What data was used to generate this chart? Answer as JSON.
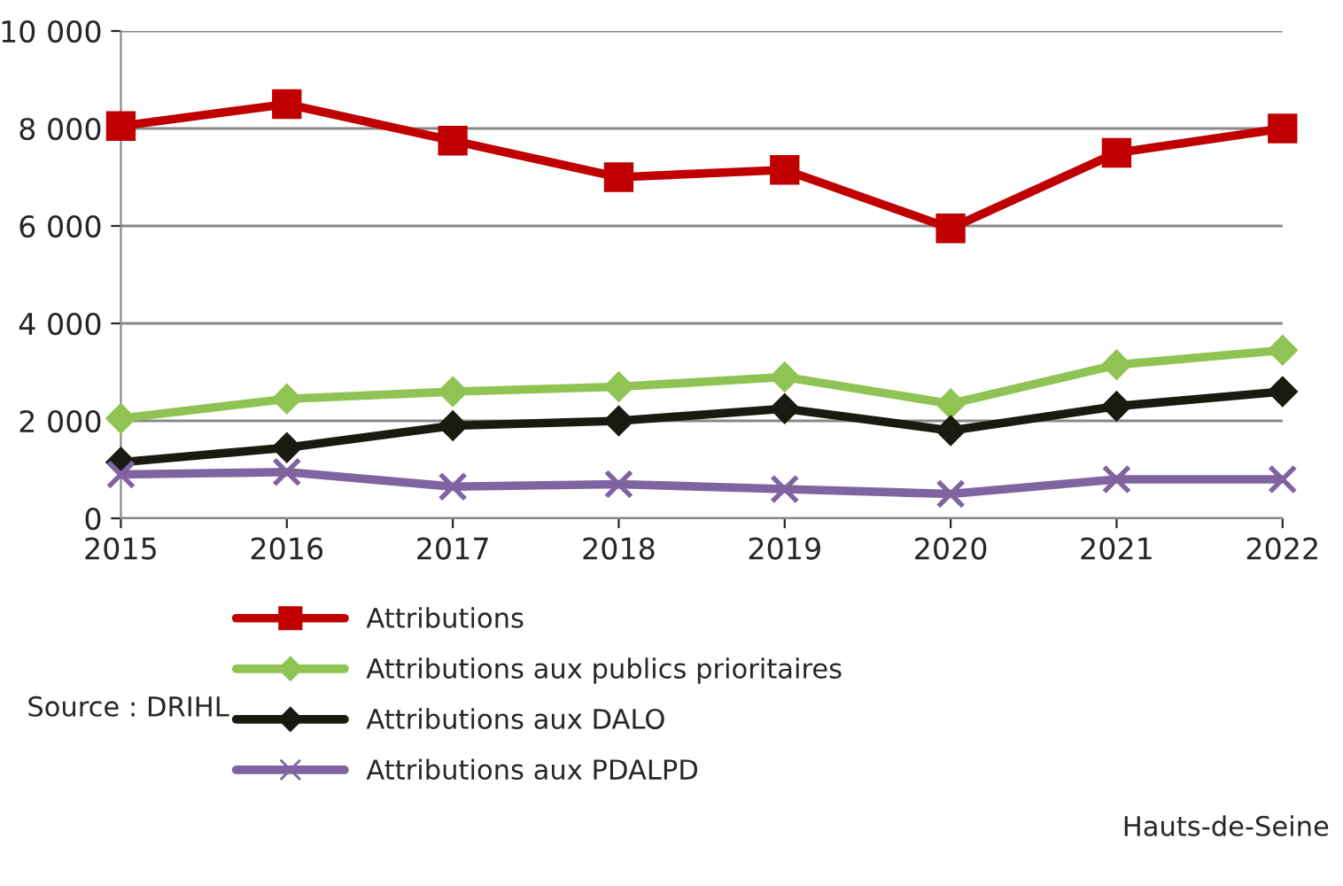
{
  "chart_data": {
    "type": "line",
    "categories": [
      "2015",
      "2016",
      "2017",
      "2018",
      "2019",
      "2020",
      "2021",
      "2022"
    ],
    "series": [
      {
        "name": "Attributions",
        "color": "#c00000",
        "marker": "square",
        "values": [
          8050,
          8500,
          7750,
          7000,
          7150,
          5950,
          7500,
          8000
        ]
      },
      {
        "name": "Attributions aux publics prioritaires",
        "color": "#8fc454",
        "marker": "diamond",
        "values": [
          2050,
          2450,
          2600,
          2700,
          2900,
          2350,
          3150,
          3450
        ]
      },
      {
        "name": "Attributions aux DALO",
        "color": "#1a1a10",
        "marker": "diamond",
        "values": [
          1150,
          1450,
          1900,
          2000,
          2250,
          1800,
          2300,
          2600
        ]
      },
      {
        "name": "Attributions aux PDALPD",
        "color": "#8064a2",
        "marker": "cross",
        "values": [
          900,
          950,
          650,
          700,
          600,
          500,
          800,
          800
        ]
      }
    ],
    "ylim": [
      0,
      10000
    ],
    "yticks": [
      0,
      {
        "value": 2000,
        "label": "2 000"
      },
      {
        "value": 4000,
        "label": "4 000"
      },
      {
        "value": 6000,
        "label": "6 000"
      },
      {
        "value": 8000,
        "label": "8 000"
      },
      {
        "value": 10000,
        "label": "10 000"
      }
    ],
    "grid": "y",
    "legend": "bottom",
    "line_style": "solid",
    "annotations": [
      "Source : DRIHL",
      "Hauts-de-Seine"
    ]
  }
}
